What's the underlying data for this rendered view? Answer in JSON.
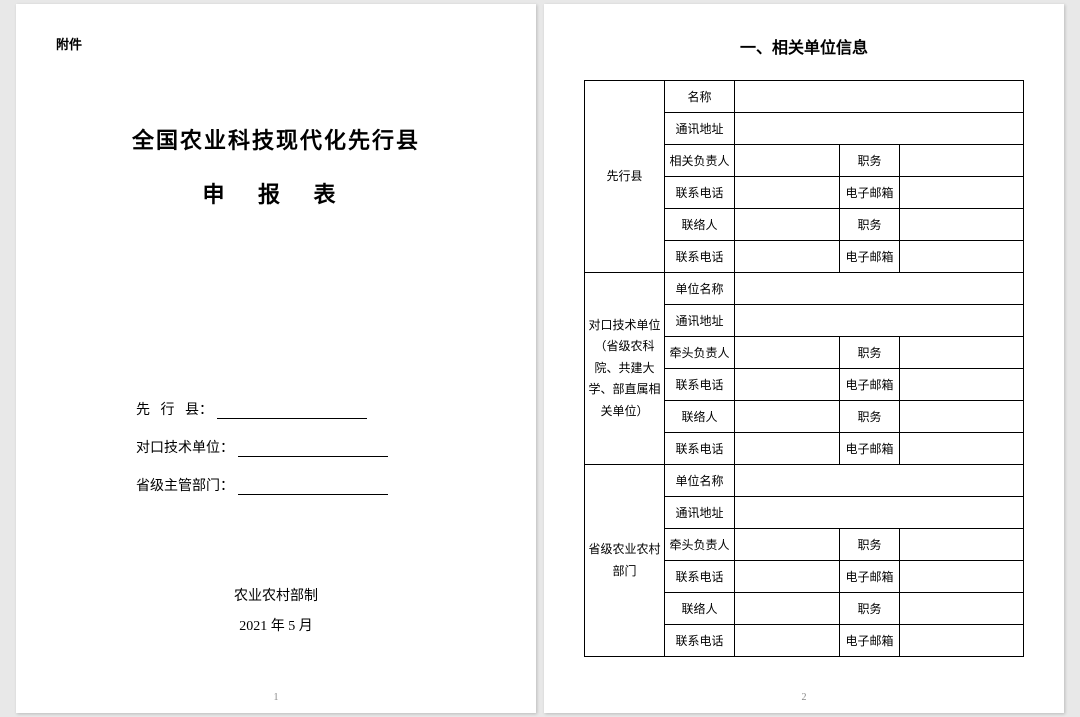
{
  "page1": {
    "attachment": "附件",
    "title_line1": "全国农业科技现代化先行县",
    "title_line2": "申 报 表",
    "field1_label": "先   行   县：",
    "field2_label": "对口技术单位：",
    "field3_label": "省级主管部门：",
    "footer_org": "农业农村部制",
    "footer_date": "2021 年 5 月",
    "page_num": "1"
  },
  "page2": {
    "section_title": "一、相关单位信息",
    "page_num": "2",
    "groups": [
      {
        "name": "先行县",
        "rows": [
          {
            "c1": "名称",
            "span": true
          },
          {
            "c1": "通讯地址",
            "span": true
          },
          {
            "c1": "相关负责人",
            "c2": "职务"
          },
          {
            "c1": "联系电话",
            "c2": "电子邮箱"
          },
          {
            "c1": "联络人",
            "c2": "职务"
          },
          {
            "c1": "联系电话",
            "c2": "电子邮箱"
          }
        ]
      },
      {
        "name": "对口技术单位（省级农科院、共建大学、部直属相关单位）",
        "rows": [
          {
            "c1": "单位名称",
            "span": true
          },
          {
            "c1": "通讯地址",
            "span": true
          },
          {
            "c1": "牵头负责人",
            "c2": "职务"
          },
          {
            "c1": "联系电话",
            "c2": "电子邮箱"
          },
          {
            "c1": "联络人",
            "c2": "职务"
          },
          {
            "c1": "联系电话",
            "c2": "电子邮箱"
          }
        ]
      },
      {
        "name": "省级农业农村部门",
        "rows": [
          {
            "c1": "单位名称",
            "span": true
          },
          {
            "c1": "通讯地址",
            "span": true
          },
          {
            "c1": "牵头负责人",
            "c2": "职务"
          },
          {
            "c1": "联系电话",
            "c2": "电子邮箱"
          },
          {
            "c1": "联络人",
            "c2": "职务"
          },
          {
            "c1": "联系电话",
            "c2": "电子邮箱"
          }
        ]
      }
    ]
  },
  "style": {
    "page_bg": "#ffffff",
    "body_bg": "#e8e8e8",
    "text_color": "#000000",
    "border_color": "#000000",
    "pagenum_color": "#888888",
    "title_fontsize_pt": 16,
    "body_fontsize_pt": 11,
    "table_fontsize_pt": 9,
    "font_family_title": "SimSun",
    "font_family_table": "SimHei"
  }
}
